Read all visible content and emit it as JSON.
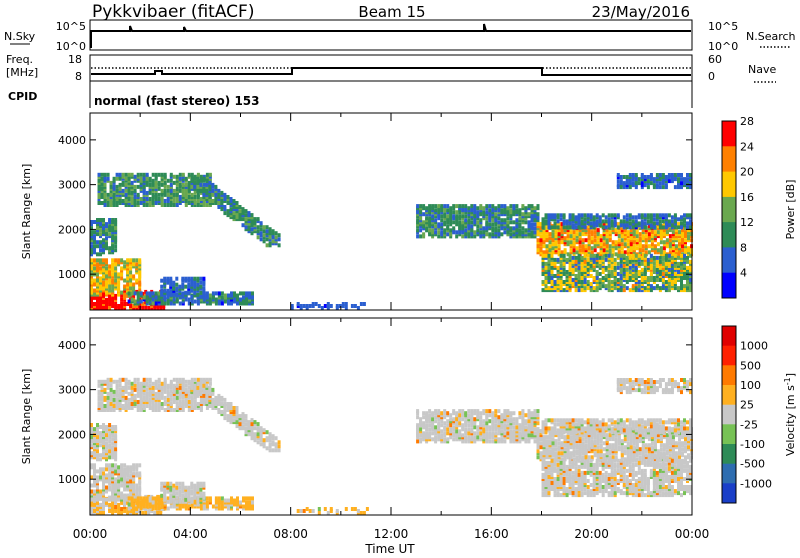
{
  "header": {
    "station": "Pykkvibaer (fitACF)",
    "beam": "Beam 15",
    "date": "23/May/2016"
  },
  "panel_nsky": {
    "left_label": "N.Sky",
    "right_label": "N.Search",
    "left_ticks": [
      "10^5",
      "10^0"
    ],
    "right_ticks": [
      "10^5",
      "10^0"
    ]
  },
  "panel_freq": {
    "left_label_1": "Freq.",
    "left_label_2": "[MHz]",
    "left_ticks": [
      "18",
      "8"
    ],
    "right_label": "Nave",
    "right_ticks": [
      "60",
      "0"
    ]
  },
  "panel_cpid": {
    "label": "CPID",
    "text": "normal (fast stereo) 153"
  },
  "x_axis": {
    "label": "Time UT",
    "ticks": [
      "00:00",
      "04:00",
      "08:00",
      "12:00",
      "16:00",
      "20:00",
      "00:00"
    ]
  },
  "chart_data": [
    {
      "type": "heatmap",
      "name": "power",
      "ylabel": "Slant Range [km]",
      "yticks": [
        "1000",
        "2000",
        "3000",
        "4000"
      ],
      "ylim": [
        200,
        4600
      ],
      "xlim_hours": [
        0,
        24
      ],
      "colorbar": {
        "label": "Power [dB]",
        "ticks": [
          "4",
          "8",
          "12",
          "16",
          "20",
          "24",
          "28"
        ],
        "colors": [
          "#0000ff",
          "#2b5fd0",
          "#2e8b57",
          "#6aa84f",
          "#ffc800",
          "#ff8000",
          "#ff0000"
        ]
      }
    },
    {
      "type": "heatmap",
      "name": "velocity",
      "ylabel": "Slant Range [km]",
      "yticks": [
        "1000",
        "2000",
        "3000",
        "4000"
      ],
      "ylim": [
        200,
        4600
      ],
      "xlim_hours": [
        0,
        24
      ],
      "colorbar": {
        "label": "Velocity [m s",
        "label_sup": "-1",
        "label_close": "]",
        "ticks": [
          "1000",
          "500",
          "100",
          "25",
          "-25",
          "-100",
          "-500",
          "-1000"
        ],
        "colors": [
          "#1a3fc8",
          "#2e6db0",
          "#2e8b57",
          "#77c255",
          "#c8c8c8",
          "#ffb020",
          "#ff7a00",
          "#ff2000",
          "#e00000"
        ]
      }
    }
  ],
  "colors": {
    "ground_scatter": "#bebebe"
  }
}
